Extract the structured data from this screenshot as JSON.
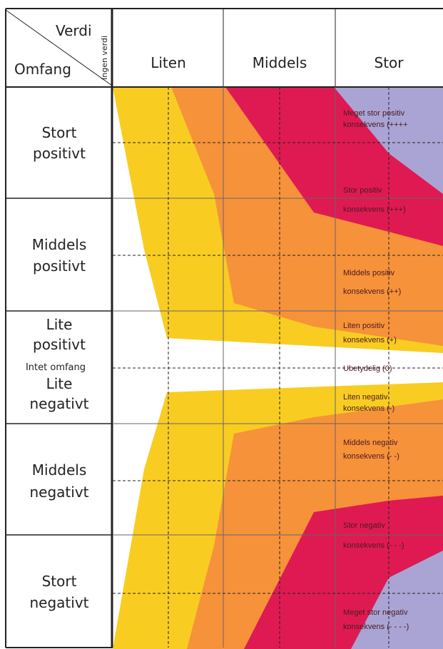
{
  "header": {
    "verdi": "Verdi",
    "omfang": "Omfang",
    "ingen_verdi": "Ingen verdi",
    "columns": [
      "Liten",
      "Middels",
      "Stor"
    ]
  },
  "rows": {
    "stort_positivt": [
      "Stort",
      "positivt"
    ],
    "middels_positivt": [
      "Middels",
      "positivt"
    ],
    "lite_positivt": [
      "Lite",
      "positivt"
    ],
    "intet_omfang": "Intet omfang",
    "lite_negativt": [
      "Lite",
      "negativt"
    ],
    "middels_negativt": [
      "Middels",
      "negativt"
    ],
    "stort_negativt": [
      "Stort",
      "negativt"
    ]
  },
  "consequences": {
    "meget_stor_positiv": [
      "Meget stor positiv",
      "konsekvens (++++"
    ],
    "stor_positiv": [
      "Stor positiv",
      "konsekvens (+++)"
    ],
    "middels_positiv": [
      "Middels positiv",
      "konsekvens (++)"
    ],
    "liten_positiv": [
      "Liten positiv",
      "konsekvens (+)"
    ],
    "ubetydelig": "Ubetydelig (0)",
    "liten_negativ": [
      "Liten negativ",
      "konsekvens (-)"
    ],
    "middels_negativ": [
      "Middels negativ",
      "konsekvens (- -)"
    ],
    "stor_negativ": [
      "Stor negativ",
      "konsekvens (- - -)"
    ],
    "meget_stor_negativ": [
      "Meget stor negativ",
      "konsekvens (- - - -)"
    ]
  },
  "colors": {
    "yellow": "#f9cc22",
    "orange": "#f6923a",
    "red": "#df1a52",
    "lilac": "#a9a4d4",
    "line": "#222222"
  }
}
